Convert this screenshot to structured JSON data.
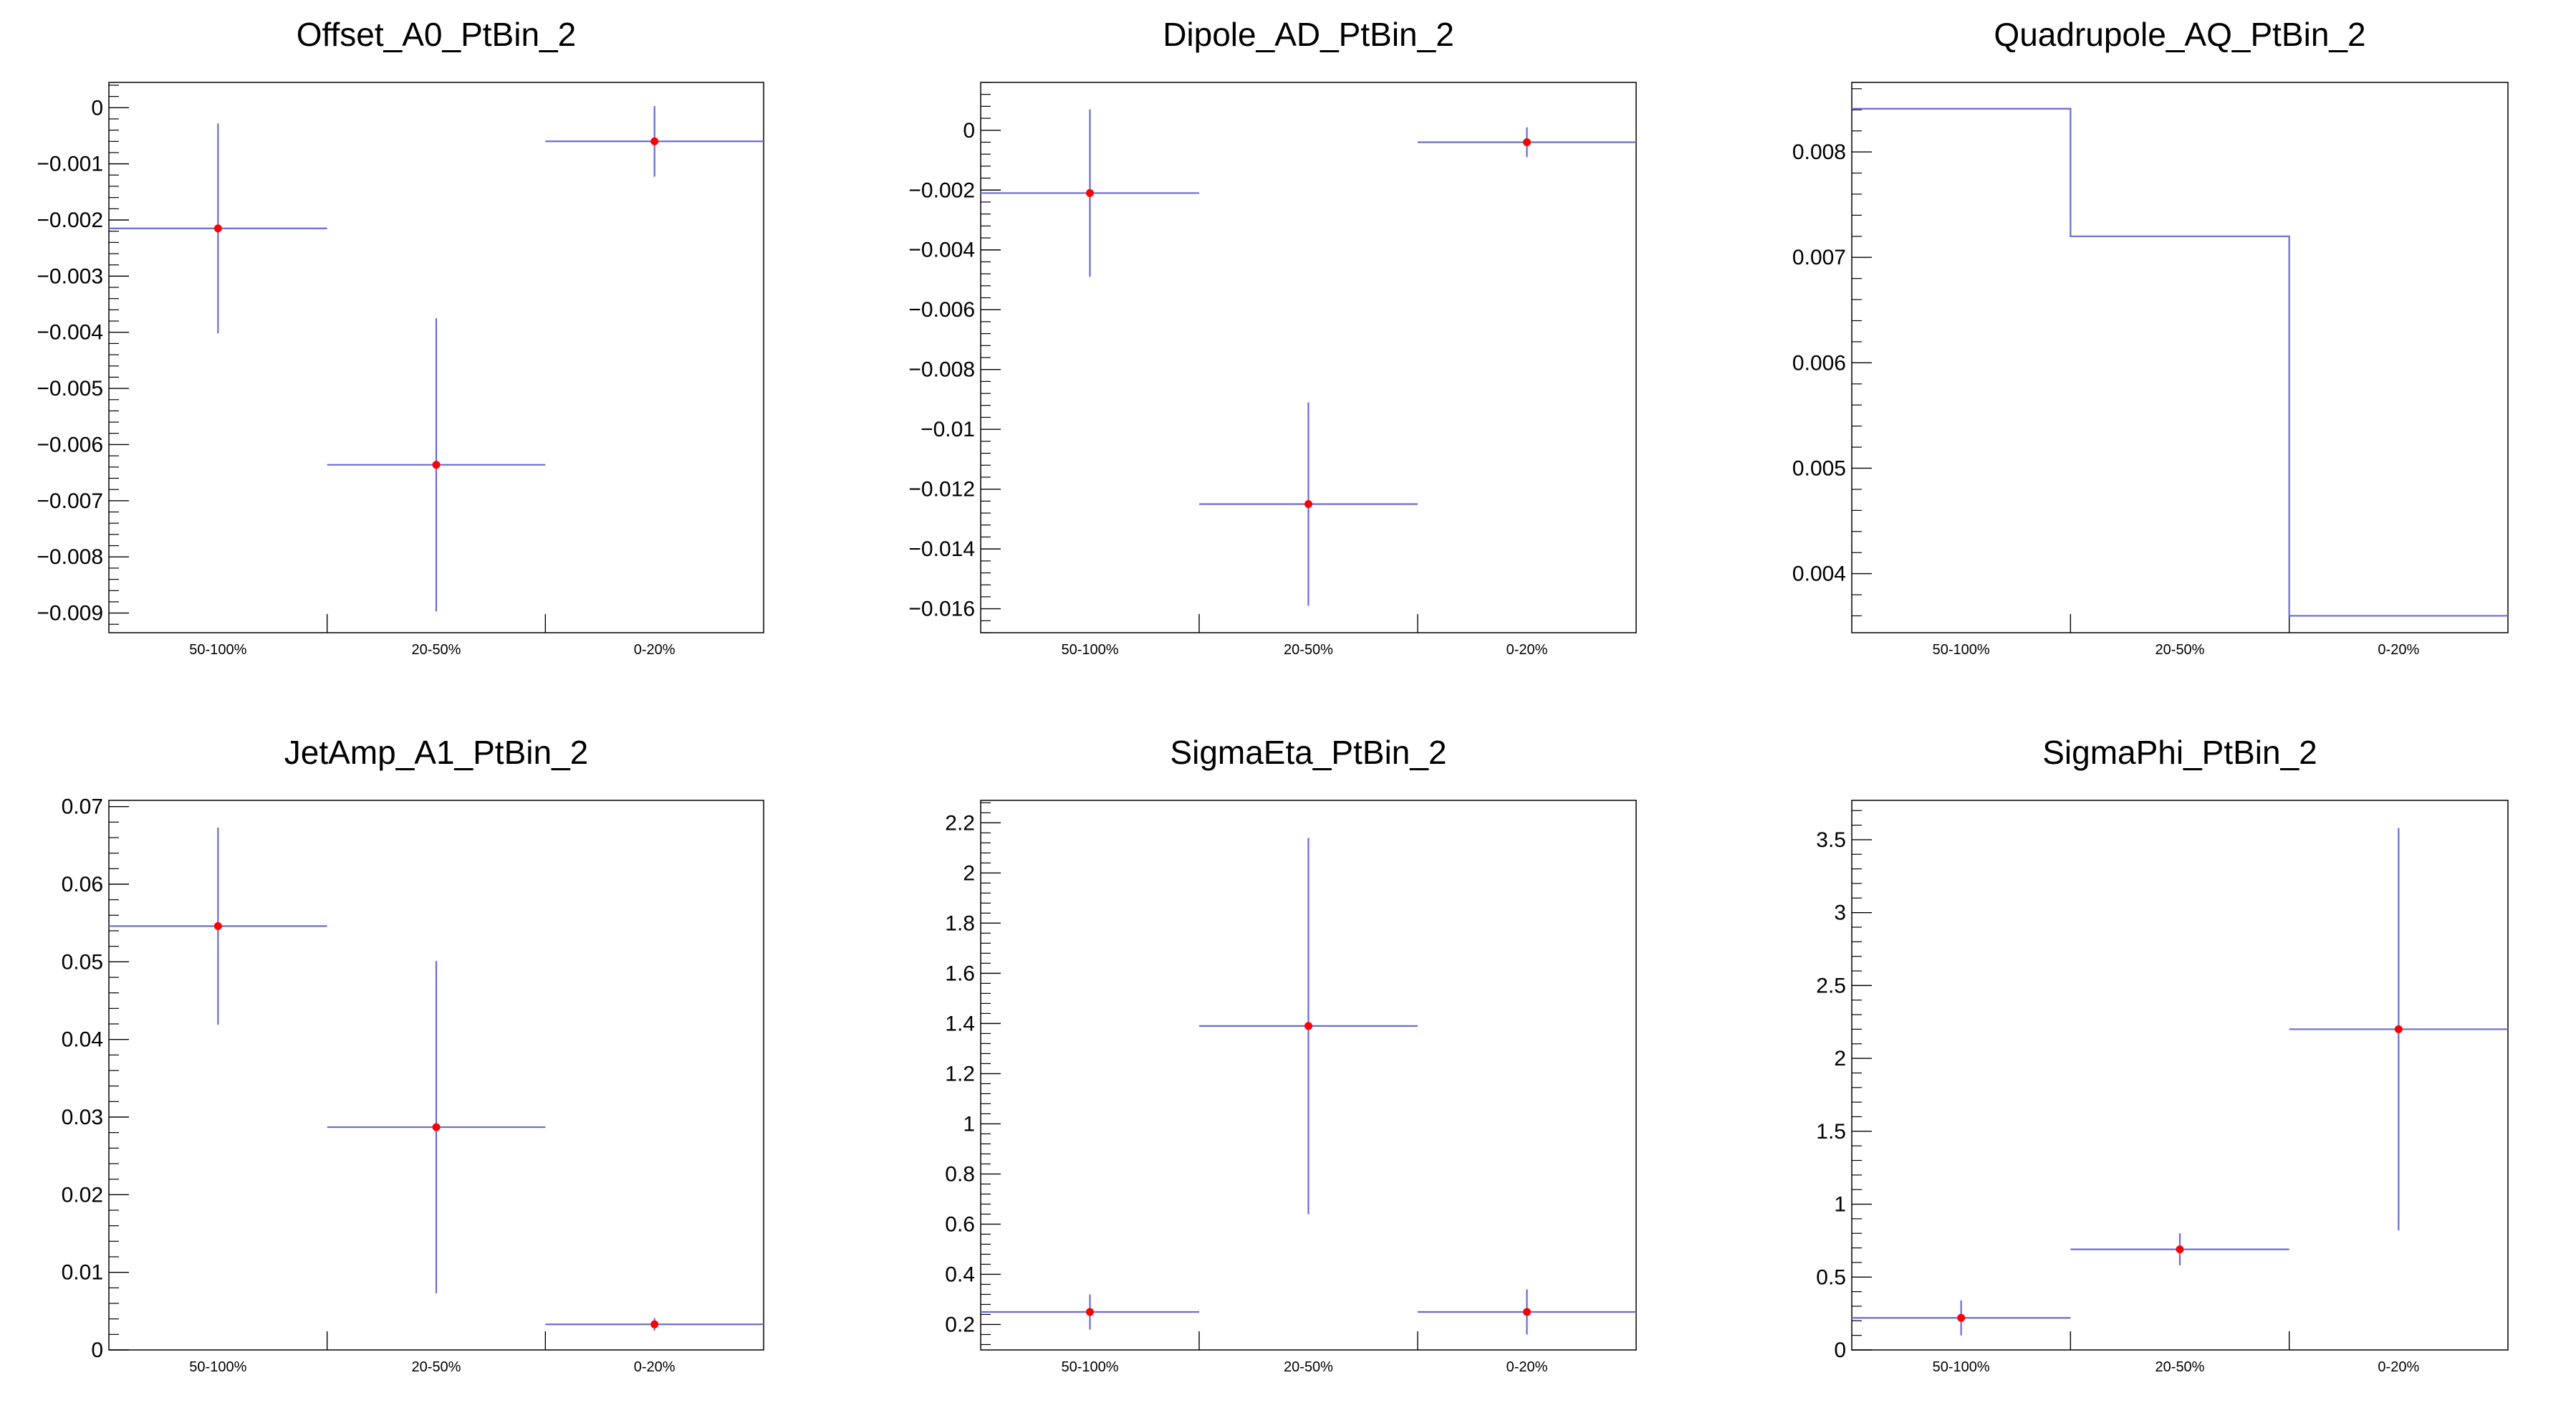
{
  "colors": {
    "marker": "#ff0000",
    "line": "#6a6ad4",
    "frame": "#000000"
  },
  "chart_data": [
    {
      "type": "scatter",
      "title": "Offset_A0_PtBin_2",
      "categories": [
        "50-100%",
        "20-50%",
        "0-20%"
      ],
      "ylim": [
        -0.00935,
        0.00045
      ],
      "yticks": [
        0,
        -0.001,
        -0.002,
        -0.003,
        -0.004,
        -0.005,
        -0.006,
        -0.007,
        -0.008,
        -0.009
      ],
      "ytick_labels": [
        "0",
        "−0.001",
        "−0.002",
        "−0.003",
        "−0.004",
        "−0.005",
        "−0.006",
        "−0.007",
        "−0.008",
        "−0.009"
      ],
      "minor_step": 0.0002,
      "values": [
        -0.00215,
        -0.00636,
        -0.0006
      ],
      "errors": [
        0.00187,
        0.00261,
        0.00063
      ],
      "markers": true
    },
    {
      "type": "scatter",
      "title": "Dipole_AD_PtBin_2",
      "categories": [
        "50-100%",
        "20-50%",
        "0-20%"
      ],
      "ylim": [
        -0.0168,
        0.0016
      ],
      "yticks": [
        0,
        -0.002,
        -0.004,
        -0.006,
        -0.008,
        -0.01,
        -0.012,
        -0.014,
        -0.016
      ],
      "ytick_labels": [
        "0",
        "−0.002",
        "−0.004",
        "−0.006",
        "−0.008",
        "−0.01",
        "−0.012",
        "−0.014",
        "−0.016"
      ],
      "minor_step": 0.0004,
      "values": [
        -0.0021,
        -0.0125,
        -0.0004
      ],
      "errors": [
        0.0028,
        0.0034,
        0.0005
      ],
      "markers": true
    },
    {
      "type": "bar",
      "title": "Quadrupole_AQ_PtBin_2",
      "categories": [
        "50-100%",
        "20-50%",
        "0-20%"
      ],
      "ylim": [
        0.00344,
        0.00866
      ],
      "yticks": [
        0.004,
        0.005,
        0.006,
        0.007,
        0.008
      ],
      "ytick_labels": [
        "0.004",
        "0.005",
        "0.006",
        "0.007",
        "0.008"
      ],
      "minor_step": 0.0002,
      "values": [
        0.00841,
        0.0072,
        0.0036
      ],
      "errors": [
        0,
        0,
        0
      ],
      "markers": false
    },
    {
      "type": "scatter",
      "title": "JetAmp_A1_PtBin_2",
      "categories": [
        "50-100%",
        "20-50%",
        "0-20%"
      ],
      "ylim": [
        0,
        0.0708
      ],
      "yticks": [
        0,
        0.01,
        0.02,
        0.03,
        0.04,
        0.05,
        0.06,
        0.07
      ],
      "ytick_labels": [
        "0",
        "0.01",
        "0.02",
        "0.03",
        "0.04",
        "0.05",
        "0.06",
        "0.07"
      ],
      "minor_step": 0.002,
      "values": [
        0.0546,
        0.0287,
        0.0033
      ],
      "errors": [
        0.0127,
        0.0214,
        0.0008
      ],
      "markers": true
    },
    {
      "type": "scatter",
      "title": "SigmaEta_PtBin_2",
      "categories": [
        "50-100%",
        "20-50%",
        "0-20%"
      ],
      "ylim": [
        0.0985,
        2.2895
      ],
      "yticks": [
        0.2,
        0.4,
        0.6,
        0.8,
        1,
        1.2,
        1.4,
        1.6,
        1.8,
        2,
        2.2
      ],
      "ytick_labels": [
        "0.2",
        "0.4",
        "0.6",
        "0.8",
        "1",
        "1.2",
        "1.4",
        "1.6",
        "1.8",
        "2",
        "2.2"
      ],
      "minor_step": 0.04,
      "values": [
        0.25,
        1.39,
        0.25
      ],
      "errors": [
        0.07,
        0.75,
        0.09
      ],
      "markers": true
    },
    {
      "type": "scatter",
      "title": "SigmaPhi_PtBin_2",
      "categories": [
        "50-100%",
        "20-50%",
        "0-20%"
      ],
      "ylim": [
        0,
        3.77
      ],
      "yticks": [
        0,
        0.5,
        1,
        1.5,
        2,
        2.5,
        3,
        3.5
      ],
      "ytick_labels": [
        "0",
        "0.5",
        "1",
        "1.5",
        "2",
        "2.5",
        "3",
        "3.5"
      ],
      "minor_step": 0.1,
      "values": [
        0.22,
        0.69,
        2.2
      ],
      "errors": [
        0.12,
        0.11,
        1.38
      ],
      "markers": true
    }
  ]
}
